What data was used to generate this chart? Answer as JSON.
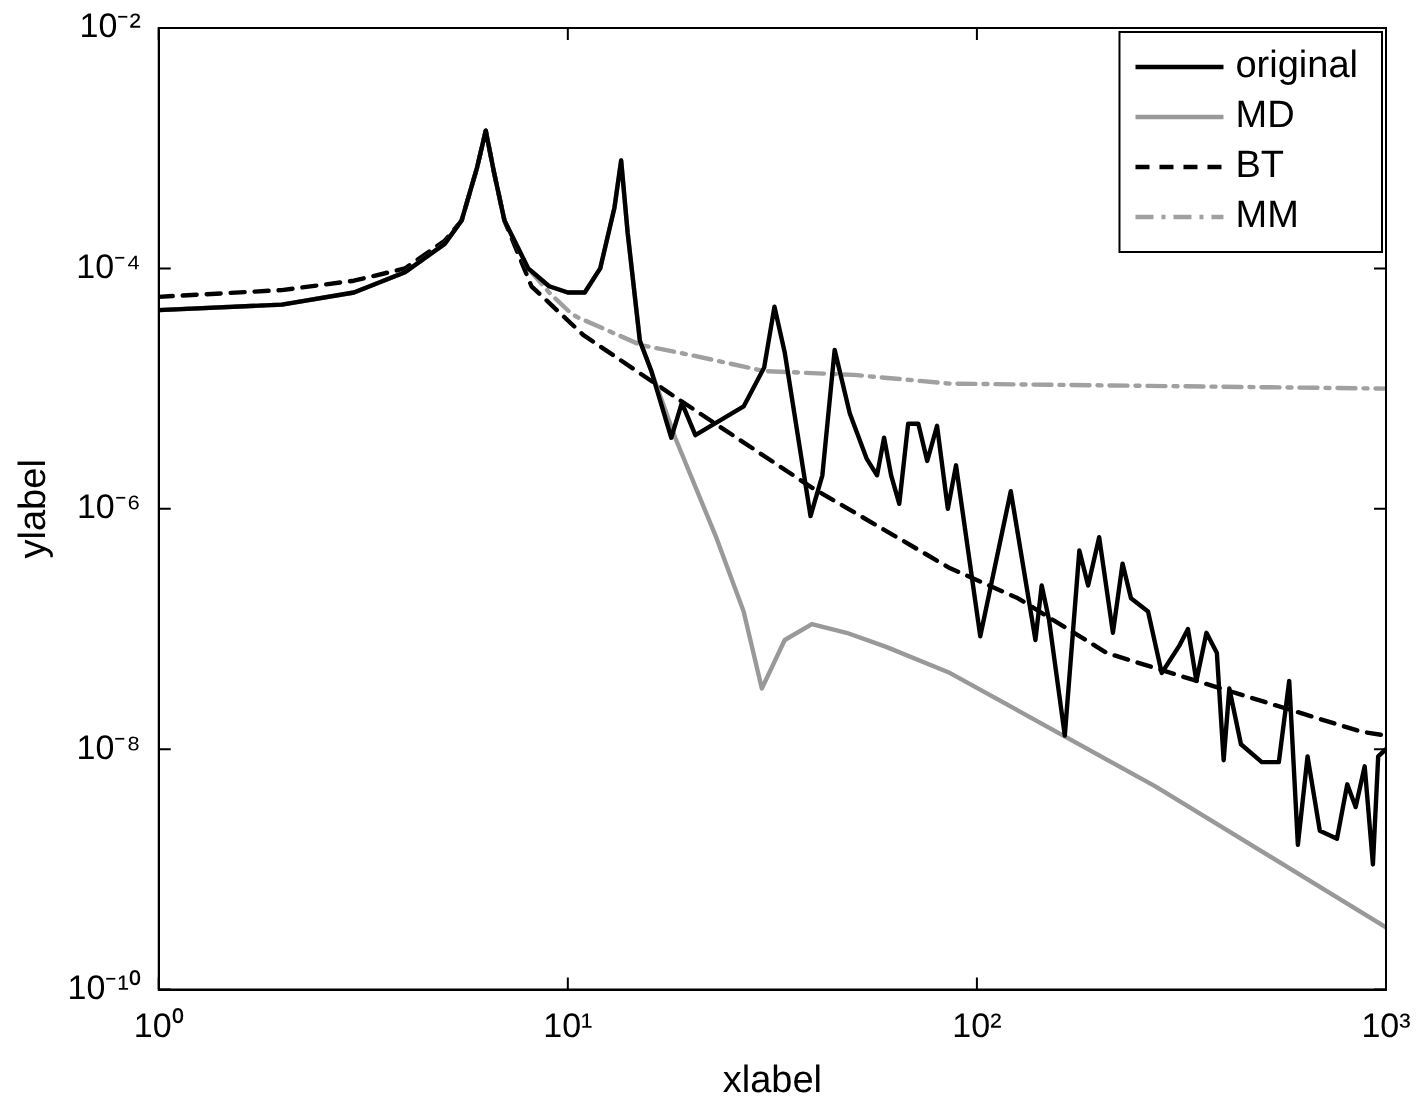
{
  "chart_data": {
    "type": "line",
    "xlabel": "xlabel",
    "ylabel": "ylabel",
    "log": "xy",
    "legend": "top right",
    "grid": false,
    "marker": "none",
    "xlim": [
      1,
      1000
    ],
    "xticks": [
      {
        "value": 1,
        "label": "10⁰"
      },
      {
        "value": 10,
        "label": "10¹"
      },
      {
        "value": 100,
        "label": "10²"
      },
      {
        "value": 1000,
        "label": "10³"
      }
    ],
    "ylim": [
      1e-10,
      0.01
    ],
    "yticks": [
      {
        "value": 1e-10,
        "label": "10⁻¹⁰"
      },
      {
        "value": 1e-08,
        "label": "10⁻⁸"
      },
      {
        "value": 1e-06,
        "label": "10⁻⁶"
      },
      {
        "value": 0.0001,
        "label": "10⁻⁴"
      },
      {
        "value": 0.01,
        "label": "10⁻²"
      }
    ],
    "series": [
      {
        "name": "original",
        "color": "#000000",
        "line_style": "solid",
        "x": [
          1,
          2,
          3,
          4,
          5,
          5.5,
          6,
          6.3,
          6.6,
          7,
          8,
          9,
          10,
          11,
          12,
          13,
          13.5,
          14,
          15,
          16,
          17.9,
          19,
          20.5,
          26.9,
          30.2,
          32,
          33.9,
          39.2,
          41.9,
          44.9,
          48.9,
          53.8,
          57,
          59.3,
          61.7,
          64.6,
          67.9,
          71.9,
          75.6,
          79.9,
          84.9,
          88.9,
          101.9,
          121,
          139,
          144,
          150,
          164,
          178,
          187,
          199,
          215,
          227,
          238,
          262,
          283,
          312,
          328,
          344,
          364,
          386,
          401,
          414,
          442,
          497,
          547,
          580,
          609,
          643,
          689,
          759,
          804,
          843,
          887,
          929,
          957,
          1000
        ],
        "values": [
          4.5e-05,
          5e-05,
          6.3e-05,
          9.3e-05,
          0.00016,
          0.00025,
          0.00069,
          0.0014,
          0.00063,
          0.00025,
          0.0001,
          7.1e-05,
          6.3e-05,
          6.3e-05,
          0.0001,
          0.00032,
          0.00079,
          0.0002,
          2.5e-05,
          1.4e-05,
          3.9e-06,
          7.6e-06,
          4.1e-06,
          7.1e-06,
          1.5e-05,
          4.8e-05,
          2e-05,
          8.7e-07,
          1.9e-06,
          2.1e-05,
          6.2e-06,
          2.6e-06,
          1.9e-06,
          3.9e-06,
          1.9e-06,
          1.1e-06,
          5.1e-06,
          5.1e-06,
          2.5e-06,
          4.9e-06,
          1e-06,
          2.3e-06,
          8.7e-08,
          1.4e-06,
          8.1e-08,
          2.3e-07,
          1.2e-07,
          1.3e-08,
          4.5e-07,
          2.3e-07,
          5.8e-07,
          9.3e-08,
          3.5e-07,
          1.8e-07,
          1.4e-07,
          4.3e-08,
          7.2e-08,
          1e-07,
          3.7e-08,
          9.3e-08,
          6.3e-08,
          8.1e-09,
          3.2e-08,
          1.1e-08,
          7.8e-09,
          7.8e-09,
          3.7e-08,
          1.6e-09,
          8.7e-09,
          2.1e-09,
          1.8e-09,
          5.1e-09,
          3.3e-09,
          7.2e-09,
          1.1e-09,
          8.7e-09,
          1e-08
        ]
      },
      {
        "name": "MD",
        "color": "#999999",
        "line_style": "solid",
        "x": [
          1,
          2,
          3,
          4,
          5,
          5.5,
          6,
          6.3,
          6.6,
          7,
          8,
          9,
          10,
          11,
          12,
          13,
          13.5,
          14,
          15,
          16,
          18.3,
          23,
          26.9,
          29.8,
          33.9,
          39.5,
          48,
          60,
          86,
          273,
          1000
        ],
        "values": [
          4.5e-05,
          5e-05,
          6.3e-05,
          9.3e-05,
          0.00016,
          0.00025,
          0.00069,
          0.0014,
          0.00063,
          0.00025,
          0.0001,
          7.1e-05,
          6.3e-05,
          6.3e-05,
          0.0001,
          0.00032,
          0.00079,
          0.0002,
          2.5e-05,
          1.4e-05,
          3.9e-06,
          5.9e-07,
          1.4e-07,
          3.2e-08,
          8.1e-08,
          1.1e-07,
          9.3e-08,
          7.1e-08,
          4.3e-08,
          4.9e-09,
          3.3e-10
        ]
      },
      {
        "name": "BT",
        "color": "#000000",
        "line_style": "dashed",
        "x": [
          1,
          2,
          3,
          4,
          5,
          5.5,
          6,
          6.3,
          6.6,
          7,
          8.15,
          10.9,
          18.3,
          39.5,
          86,
          126,
          208,
          434,
          869,
          1000
        ],
        "values": [
          5.8e-05,
          6.6e-05,
          7.9e-05,
          0.0001,
          0.00017,
          0.00025,
          0.00069,
          0.0014,
          0.00063,
          0.00025,
          7.1e-05,
          2.8e-05,
          8.5e-06,
          1.5e-06,
          3.2e-07,
          1.8e-07,
          6.3e-08,
          2.9e-08,
          1.4e-08,
          1.3e-08
        ]
      },
      {
        "name": "MM",
        "color": "#a0a0a0",
        "line_style": "dashdot",
        "x": [
          1,
          2,
          3,
          4,
          5,
          5.5,
          6,
          6.3,
          6.6,
          7,
          8,
          9,
          10.2,
          10.6,
          15.1,
          20,
          30.2,
          50,
          86,
          1000
        ],
        "values": [
          4.5e-05,
          5e-05,
          6.3e-05,
          9.3e-05,
          0.00016,
          0.00025,
          0.00069,
          0.0014,
          0.00063,
          0.00025,
          0.0001,
          6.3e-05,
          4.2e-05,
          3.9e-05,
          2.3e-05,
          1.9e-05,
          1.4e-05,
          1.3e-05,
          1.1e-05,
          1e-05
        ]
      }
    ]
  }
}
